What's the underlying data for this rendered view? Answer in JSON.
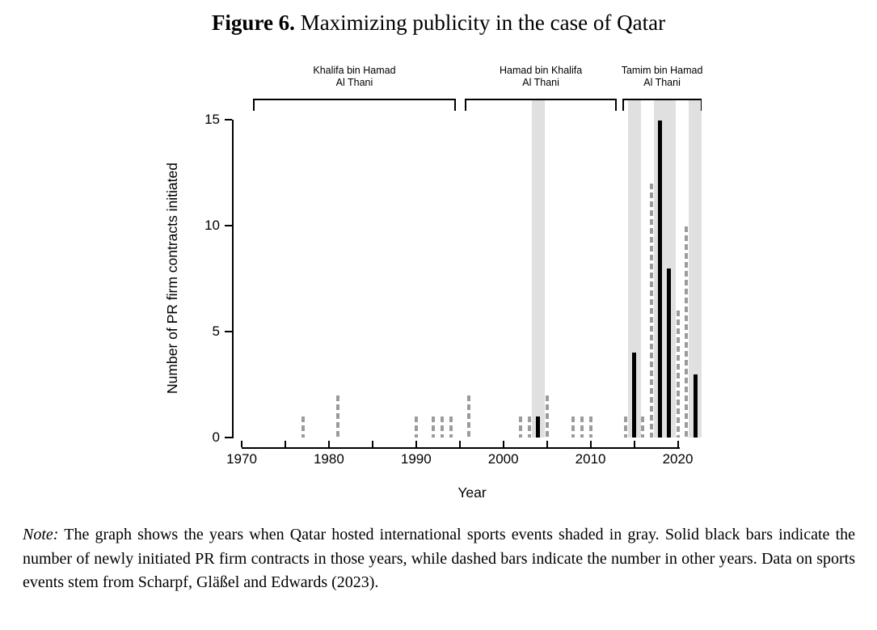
{
  "title": {
    "label": "Figure 6.",
    "text": "Maximizing publicity in the case of Qatar"
  },
  "note": {
    "label": "Note:",
    "text": "The graph shows the years when Qatar hosted international sports events shaded in gray. Solid black bars indicate the number of newly initiated PR firm contracts in those years, while dashed bars indicate the number in other years. Data on sports events stem from Scharpf, Gläßel and Edwards (2023)."
  },
  "chart_data": {
    "type": "bar",
    "xlabel": "Year",
    "ylabel": "Number of PR firm contracts initiated",
    "xlim": [
      1970,
      2020
    ],
    "ylim": [
      0,
      15
    ],
    "y_ticks": [
      0,
      5,
      10,
      15
    ],
    "x_ticks_labeled": [
      1970,
      1980,
      1990,
      2000,
      2010,
      2020
    ],
    "x_tick_minor_step": 5,
    "grid": "off",
    "event_years_shaded": [
      2004,
      2015,
      2018,
      2019,
      2022
    ],
    "bars": [
      {
        "year": 1977,
        "value": 1,
        "style": "dashed"
      },
      {
        "year": 1981,
        "value": 2,
        "style": "dashed"
      },
      {
        "year": 1990,
        "value": 1,
        "style": "dashed"
      },
      {
        "year": 1992,
        "value": 1,
        "style": "dashed"
      },
      {
        "year": 1993,
        "value": 1,
        "style": "dashed"
      },
      {
        "year": 1994,
        "value": 1,
        "style": "dashed"
      },
      {
        "year": 1996,
        "value": 2,
        "style": "dashed"
      },
      {
        "year": 2002,
        "value": 1,
        "style": "dashed"
      },
      {
        "year": 2003,
        "value": 1,
        "style": "dashed"
      },
      {
        "year": 2004,
        "value": 1,
        "style": "solid"
      },
      {
        "year": 2005,
        "value": 2,
        "style": "dashed"
      },
      {
        "year": 2008,
        "value": 1,
        "style": "dashed"
      },
      {
        "year": 2009,
        "value": 1,
        "style": "dashed"
      },
      {
        "year": 2010,
        "value": 1,
        "style": "dashed"
      },
      {
        "year": 2014,
        "value": 1,
        "style": "dashed"
      },
      {
        "year": 2015,
        "value": 4,
        "style": "solid"
      },
      {
        "year": 2016,
        "value": 1,
        "style": "dashed"
      },
      {
        "year": 2017,
        "value": 12,
        "style": "dashed"
      },
      {
        "year": 2018,
        "value": 15,
        "style": "solid"
      },
      {
        "year": 2019,
        "value": 8,
        "style": "solid"
      },
      {
        "year": 2020,
        "value": 6,
        "style": "dashed"
      },
      {
        "year": 2021,
        "value": 10,
        "style": "dashed"
      },
      {
        "year": 2022,
        "value": 3,
        "style": "solid"
      }
    ],
    "rulers": [
      {
        "name": "Khalifa bin Hamad\nAl Thani",
        "from": 1971.3,
        "to": 1994.55
      },
      {
        "name": "Hamad bin Khalifa\nAl Thani",
        "from": 1995.6,
        "to": 2013.0
      },
      {
        "name": "Tamim bin Hamad\nAl Thani",
        "from": 2013.65,
        "to": 2022.75
      }
    ],
    "colors": {
      "solid_bar": "#000000",
      "dashed_bar": "#9b9b9b",
      "event_band": "#e0e0e0",
      "axis": "#000000"
    }
  }
}
